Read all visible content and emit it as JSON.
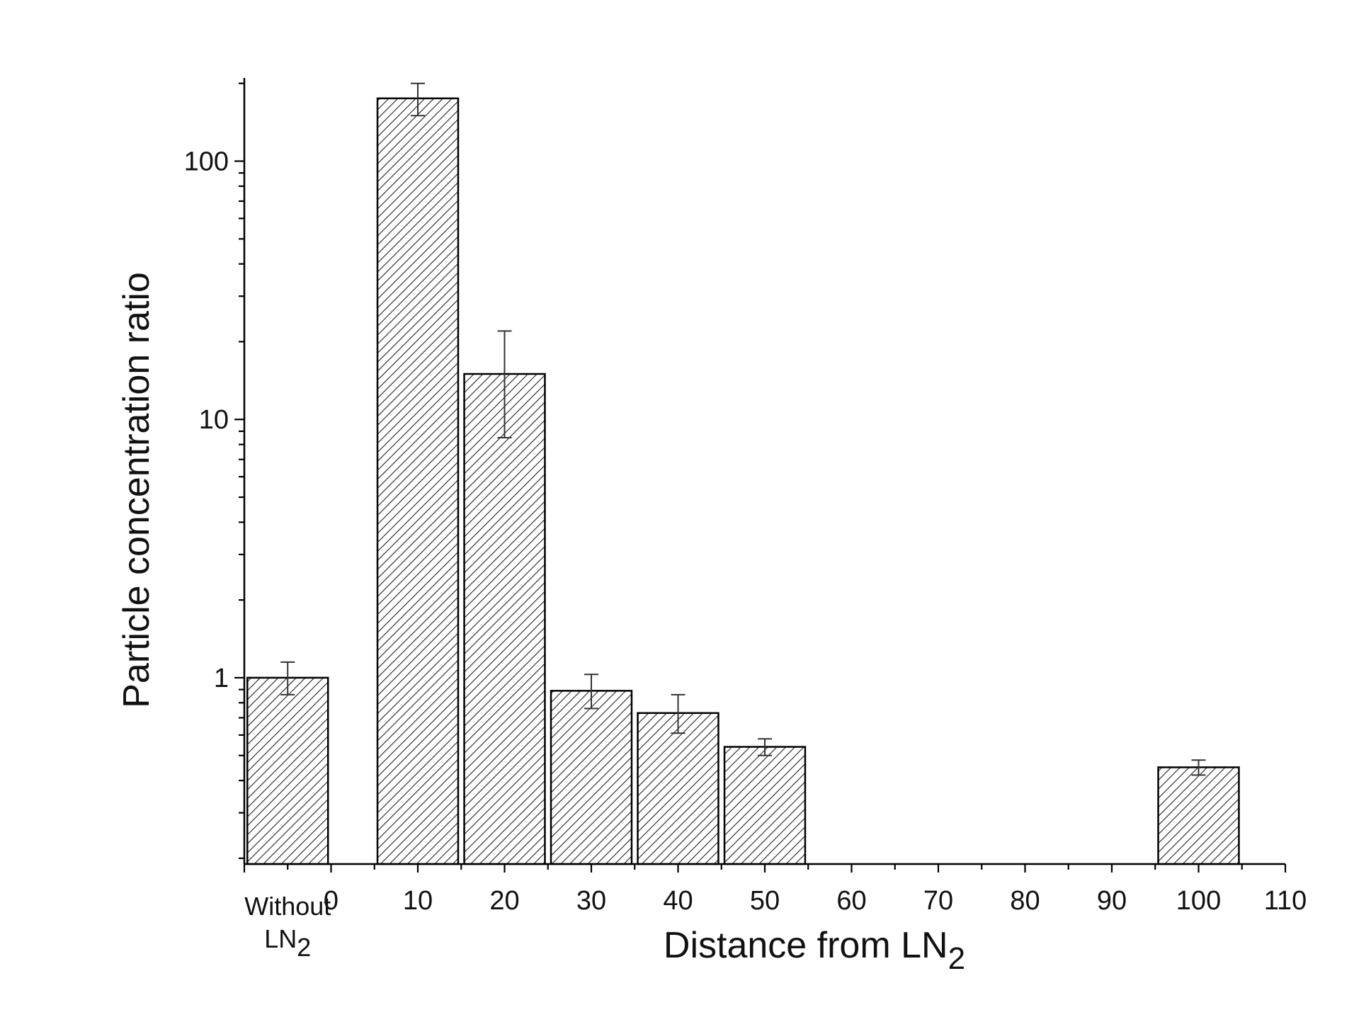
{
  "chart_data": {
    "type": "bar",
    "title": "",
    "xlabel": "Distance from LN",
    "xlabel_sub": "2",
    "ylabel": "Particle concentration ratio",
    "yscale": "log",
    "ylim": [
      0.19,
      210
    ],
    "xlim": [
      -10,
      110
    ],
    "y_ticks": [
      1,
      10,
      100
    ],
    "y_tick_labels": [
      "1",
      "10",
      "100"
    ],
    "x_ticks": [
      0,
      10,
      20,
      30,
      40,
      50,
      60,
      70,
      80,
      90,
      100,
      110
    ],
    "x_tick_labels": [
      "0",
      "10",
      "20",
      "30",
      "40",
      "50",
      "60",
      "70",
      "80",
      "90",
      "100",
      "110"
    ],
    "categories": [
      "Without LN2",
      "10",
      "20",
      "30",
      "40",
      "50",
      "100"
    ],
    "category_label": {
      "line1": "Without",
      "line2": "LN",
      "line2_sub": "2"
    },
    "x": [
      -5,
      10,
      20,
      30,
      40,
      50,
      100
    ],
    "values": [
      1.0,
      175,
      15,
      0.89,
      0.73,
      0.54,
      0.45
    ],
    "err_low": [
      0.86,
      150,
      8.5,
      0.76,
      0.61,
      0.5,
      0.42
    ],
    "err_high": [
      1.15,
      200,
      22,
      1.03,
      0.86,
      0.58,
      0.48
    ],
    "bar_fill": "hatched",
    "grid": false,
    "legend": "none",
    "colors": {
      "bar_stroke": "#000000",
      "hatch": "#222222",
      "background": "#ffffff"
    }
  }
}
